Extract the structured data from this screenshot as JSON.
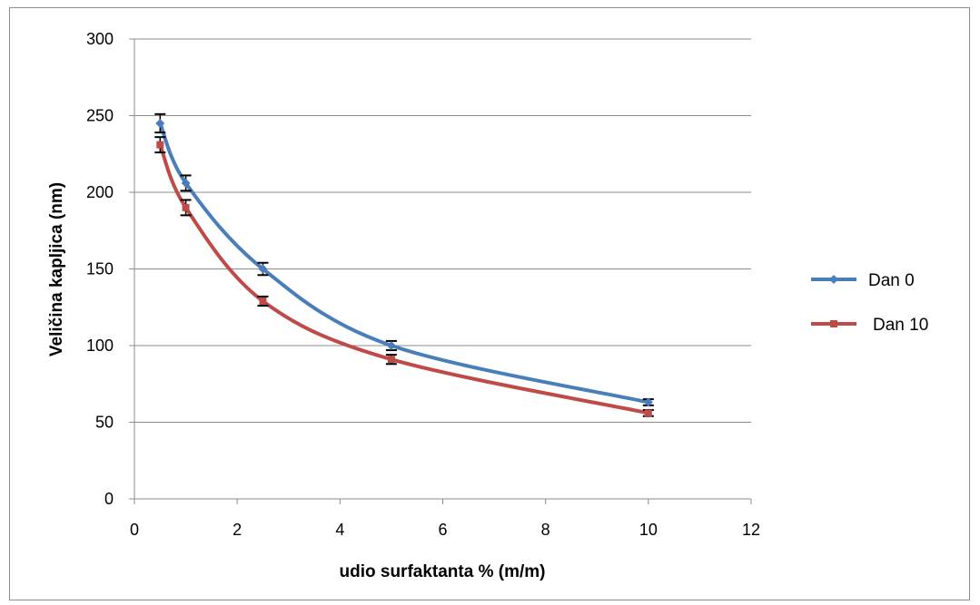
{
  "chart_data": {
    "type": "line",
    "title": "",
    "xlabel": "udio surfaktanta % (m/m)",
    "ylabel": "Veličina kapljica (nm)",
    "xlim": [
      0,
      12
    ],
    "ylim": [
      0,
      300
    ],
    "x_ticks": [
      0,
      2,
      4,
      6,
      8,
      10,
      12
    ],
    "y_ticks": [
      0,
      50,
      100,
      150,
      200,
      250,
      300
    ],
    "grid": "horizontal",
    "legend_position": "right",
    "series": [
      {
        "name": "Dan 0",
        "color": "#4a7ebb",
        "marker": "diamond",
        "x": [
          0.5,
          1,
          2.5,
          5,
          10
        ],
        "y": [
          245,
          206,
          150,
          100,
          63
        ],
        "error": [
          6,
          5,
          4,
          3,
          2
        ]
      },
      {
        "name": "Dan 10",
        "color": "#be4b48",
        "marker": "square",
        "x": [
          0.5,
          1,
          2.5,
          5,
          10
        ],
        "y": [
          231,
          190,
          129,
          91,
          56
        ],
        "error": [
          5,
          5,
          3,
          3,
          2
        ]
      }
    ]
  }
}
